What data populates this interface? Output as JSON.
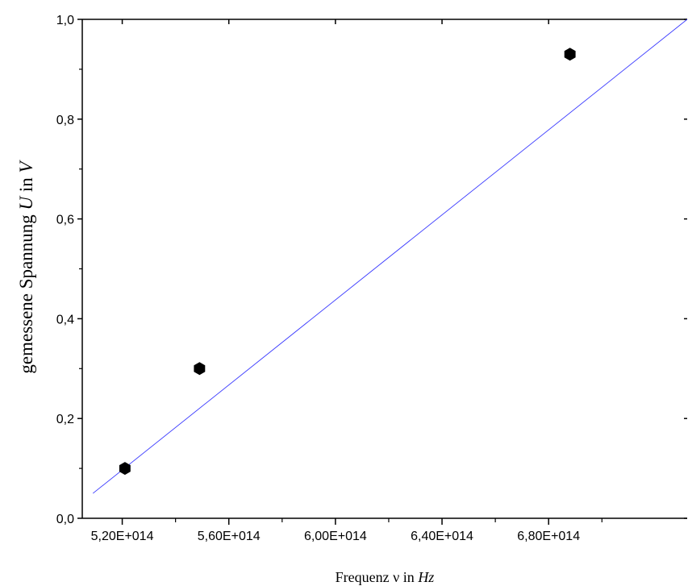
{
  "chart_data": {
    "type": "scatter",
    "xlabel": {
      "prefix": "Frequenz ",
      "symbol": "ν",
      "mid": " in ",
      "unit": "Hz"
    },
    "ylabel": {
      "prefix": "gemessene Spannung ",
      "symbol": "U",
      "mid": " in ",
      "unit": "V"
    },
    "xlim": [
      505000000000000.0,
      732000000000000.0
    ],
    "ylim": [
      0.0,
      1.0
    ],
    "x_ticks": [
      {
        "value": 520000000000000.0,
        "label": "5,20E+014"
      },
      {
        "value": 560000000000000.0,
        "label": "5,60E+014"
      },
      {
        "value": 600000000000000.0,
        "label": "6,00E+014"
      },
      {
        "value": 640000000000000.0,
        "label": "6,40E+014"
      },
      {
        "value": 680000000000000.0,
        "label": "6,80E+014"
      }
    ],
    "y_ticks": [
      {
        "value": 0.0,
        "label": "0,0"
      },
      {
        "value": 0.2,
        "label": "0,2"
      },
      {
        "value": 0.4,
        "label": "0,4"
      },
      {
        "value": 0.6,
        "label": "0,6"
      },
      {
        "value": 0.8,
        "label": "0,8"
      },
      {
        "value": 1.0,
        "label": "1,0"
      }
    ],
    "points": [
      {
        "x": 521000000000000.0,
        "y": 0.1
      },
      {
        "x": 549000000000000.0,
        "y": 0.3
      },
      {
        "x": 688000000000000.0,
        "y": 0.93
      }
    ],
    "fit_line": {
      "x": [
        509000000000000.0,
        732000000000000.0
      ],
      "y": [
        0.05,
        1.0
      ]
    },
    "grid": false,
    "colors": {
      "points": "#000000",
      "fit_line": "#3b3bff",
      "axes": "#000000"
    }
  }
}
